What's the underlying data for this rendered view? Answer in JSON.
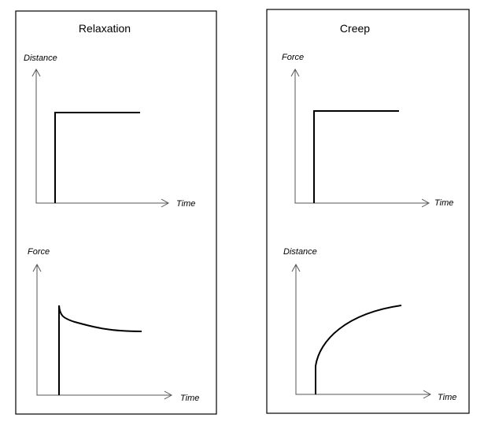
{
  "panels": [
    {
      "title": "Relaxation",
      "graphs": [
        {
          "y_label": "Distance",
          "x_label": "Time"
        },
        {
          "y_label": "Force",
          "x_label": "Time"
        }
      ]
    },
    {
      "title": "Creep",
      "graphs": [
        {
          "y_label": "Force",
          "x_label": "Time"
        },
        {
          "y_label": "Distance",
          "x_label": "Time"
        }
      ]
    }
  ]
}
